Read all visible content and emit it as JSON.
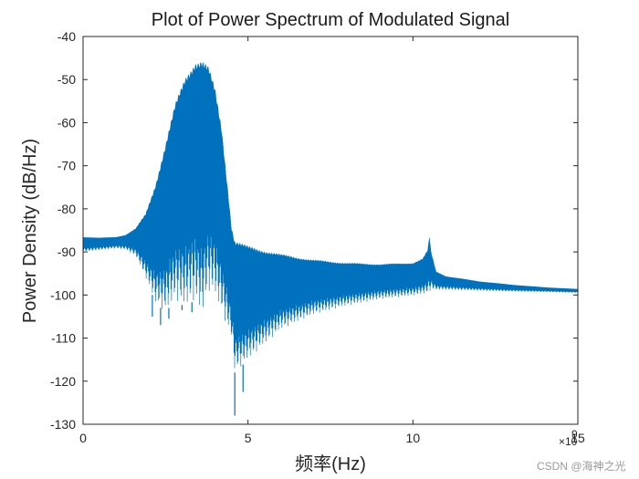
{
  "chart_data": {
    "type": "line",
    "title": "Plot of Power Spectrum of Modulated Signal",
    "xlabel": "频率(Hz)",
    "ylabel": "Power Density (dB/Hz)",
    "x_exponent_label": "9",
    "x_multiplier_prefix": "×10",
    "xlim": [
      0,
      15
    ],
    "ylim": [
      -130,
      -40
    ],
    "x_ticks": [
      0,
      5,
      10,
      15
    ],
    "x_tick_labels": [
      "0",
      "5",
      "10",
      "15"
    ],
    "y_ticks": [
      -130,
      -120,
      -110,
      -100,
      -90,
      -80,
      -70,
      -60,
      -50,
      -40
    ],
    "y_tick_labels": [
      "-130",
      "-120",
      "-110",
      "-100",
      "-90",
      "-80",
      "-70",
      "-60",
      "-50",
      "-40"
    ],
    "grid": false,
    "line_color": "#0072BD",
    "series": [
      {
        "x_units": "x 1e9 Hz",
        "upper_envelope": [
          [
            0.0,
            -86.5
          ],
          [
            0.5,
            -86.7
          ],
          [
            1.0,
            -86.5
          ],
          [
            1.3,
            -86.0
          ],
          [
            1.6,
            -84.5
          ],
          [
            1.9,
            -81.0
          ],
          [
            2.2,
            -74.0
          ],
          [
            2.5,
            -65.0
          ],
          [
            2.8,
            -55.5
          ],
          [
            3.1,
            -49.0
          ],
          [
            3.4,
            -45.5
          ],
          [
            3.6,
            -45.3
          ],
          [
            3.8,
            -47.0
          ],
          [
            4.0,
            -52.0
          ],
          [
            4.2,
            -61.0
          ],
          [
            4.4,
            -76.0
          ],
          [
            4.5,
            -84.0
          ],
          [
            4.6,
            -87.3
          ],
          [
            5.0,
            -88.6
          ],
          [
            6.0,
            -90.5
          ],
          [
            7.0,
            -91.8
          ],
          [
            8.0,
            -92.5
          ],
          [
            9.0,
            -92.8
          ],
          [
            10.0,
            -92.5
          ],
          [
            10.3,
            -91.5
          ],
          [
            10.45,
            -89.5
          ],
          [
            10.5,
            -86.5
          ],
          [
            10.55,
            -90.0
          ],
          [
            10.7,
            -94.5
          ],
          [
            11.0,
            -95.6
          ],
          [
            12.0,
            -96.8
          ],
          [
            13.0,
            -97.6
          ],
          [
            14.0,
            -98.2
          ],
          [
            15.0,
            -98.6
          ]
        ],
        "lower_envelope": [
          [
            0.0,
            -90.0
          ],
          [
            0.5,
            -89.6
          ],
          [
            1.0,
            -89.2
          ],
          [
            1.3,
            -89.5
          ],
          [
            1.6,
            -91.0
          ],
          [
            1.9,
            -96.0
          ],
          [
            2.2,
            -102.0
          ],
          [
            2.5,
            -104.0
          ],
          [
            2.8,
            -101.0
          ],
          [
            3.1,
            -103.0
          ],
          [
            3.4,
            -101.0
          ],
          [
            3.6,
            -105.0
          ],
          [
            3.8,
            -99.0
          ],
          [
            4.0,
            -100.0
          ],
          [
            4.2,
            -104.0
          ],
          [
            4.4,
            -108.0
          ],
          [
            4.5,
            -110.0
          ],
          [
            4.6,
            -118.0
          ],
          [
            5.0,
            -115.0
          ],
          [
            6.0,
            -108.0
          ],
          [
            7.0,
            -104.5
          ],
          [
            8.0,
            -102.5
          ],
          [
            9.0,
            -101.0
          ],
          [
            10.0,
            -100.2
          ],
          [
            10.3,
            -99.8
          ],
          [
            10.45,
            -99.5
          ],
          [
            10.5,
            -99.3
          ],
          [
            10.55,
            -98.8
          ],
          [
            10.7,
            -98.8
          ],
          [
            11.0,
            -98.8
          ],
          [
            12.0,
            -99.0
          ],
          [
            13.0,
            -99.2
          ],
          [
            14.0,
            -99.3
          ],
          [
            15.0,
            -99.5
          ]
        ],
        "spikes": [
          [
            2.1,
            -105.0
          ],
          [
            2.35,
            -107.0
          ],
          [
            2.6,
            -105.5
          ],
          [
            3.0,
            -103.5
          ],
          [
            3.3,
            -104.0
          ],
          [
            4.6,
            -128.0
          ],
          [
            4.85,
            -122.5
          ]
        ]
      }
    ]
  },
  "watermark": "CSDN @海神之光"
}
